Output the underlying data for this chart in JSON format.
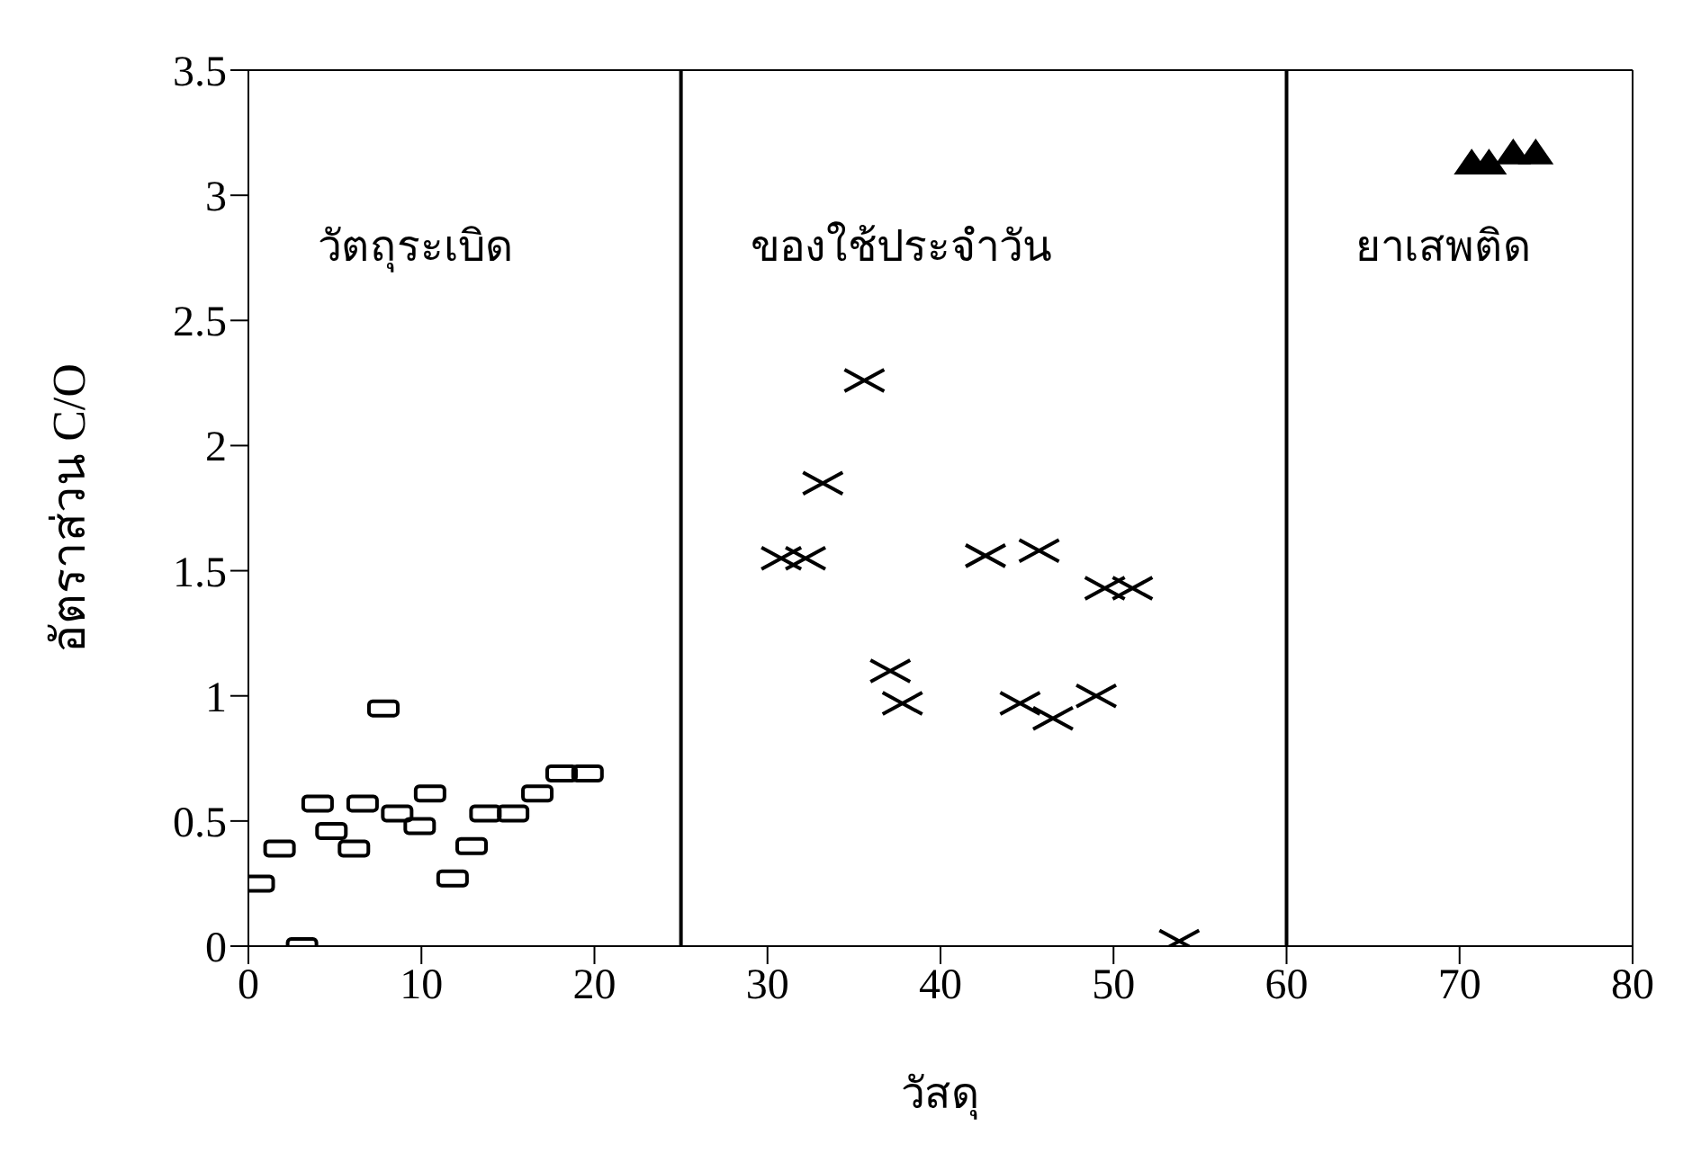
{
  "chart_data": {
    "type": "scatter",
    "xlabel": "วัสดุ",
    "ylabel": "อัตราส่วน C/O",
    "xlim": [
      0,
      80
    ],
    "xticks": [
      0,
      10,
      20,
      30,
      40,
      50,
      60,
      70,
      80
    ],
    "ylim": [
      0,
      3.5
    ],
    "yticks": [
      0,
      0.5,
      1,
      1.5,
      2,
      2.5,
      3,
      3.5
    ],
    "grid": false,
    "legend": false,
    "ref_lines": [
      {
        "axis": "x",
        "value": 25,
        "color": "#000000"
      },
      {
        "axis": "x",
        "value": 60,
        "color": "#000000"
      }
    ],
    "annotations": [
      "วัตถุระเบิด",
      "ของใช้ประจำวัน",
      "ยาเสพติด"
    ],
    "series": [
      {
        "color": "#000000",
        "marker": "square",
        "x": [
          0.6,
          1.8,
          3.1,
          4.0,
          4.8,
          6.1,
          6.6,
          7.8,
          8.6,
          9.9,
          10.5,
          11.8,
          12.9,
          13.7,
          15.3,
          16.7,
          18.1,
          19.6
        ],
        "values": [
          0.25,
          0.39,
          0.0,
          0.57,
          0.46,
          0.39,
          0.57,
          0.95,
          0.53,
          0.48,
          0.61,
          0.27,
          0.4,
          0.53,
          0.53,
          0.61,
          0.69,
          0.69
        ]
      },
      {
        "color": "#000000",
        "marker": "cross",
        "x": [
          30.8,
          32.2,
          33.2,
          35.6,
          37.1,
          37.8,
          42.6,
          45.7,
          44.6,
          46.5,
          49.0,
          49.5,
          51.1,
          53.8
        ],
        "values": [
          1.55,
          1.55,
          1.85,
          2.26,
          1.1,
          0.97,
          1.56,
          1.58,
          0.97,
          0.91,
          1.0,
          1.43,
          1.43,
          0.02
        ]
      },
      {
        "color": "#000000",
        "marker": "triangle",
        "x": [
          70.7,
          71.7,
          73.1,
          74.4
        ],
        "values": [
          3.13,
          3.13,
          3.17,
          3.17
        ]
      }
    ]
  }
}
